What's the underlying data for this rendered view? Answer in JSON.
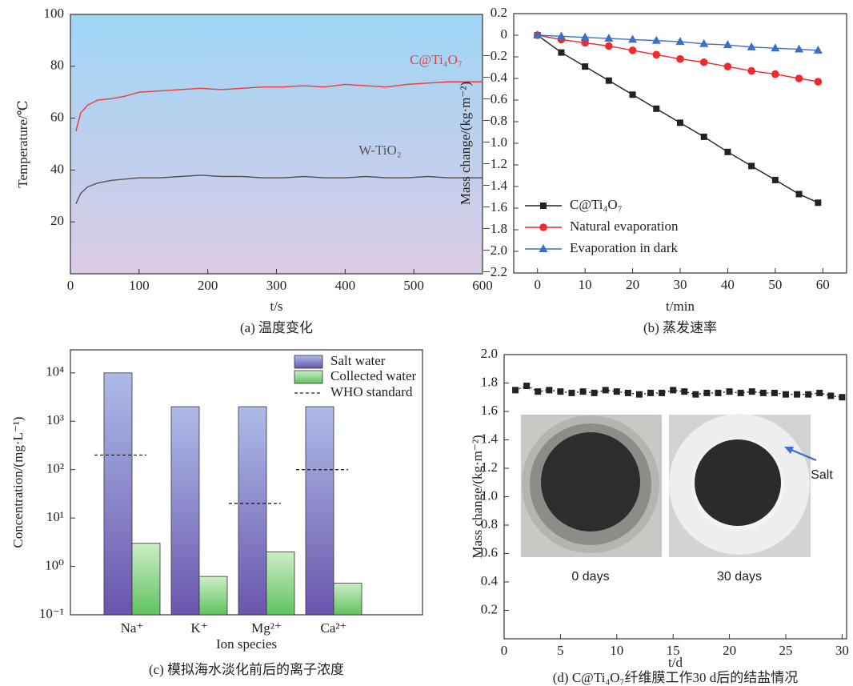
{
  "chart_data": [
    {
      "type": "line",
      "xlabel": "t/s",
      "ylabel": "Temperature/℃",
      "caption": "(a) 温度变化",
      "xlim": [
        0,
        600
      ],
      "xticks": [
        0,
        100,
        200,
        300,
        400,
        500,
        600
      ],
      "ylim": [
        0,
        100
      ],
      "yticks": [
        20,
        40,
        60,
        80,
        100
      ],
      "x": [
        8,
        15,
        25,
        40,
        60,
        80,
        100,
        130,
        160,
        190,
        220,
        250,
        280,
        310,
        340,
        370,
        400,
        430,
        460,
        490,
        520,
        550,
        580,
        600
      ],
      "series": [
        {
          "name": "C@Ti₄O₇",
          "color": "#f03a3a",
          "values": [
            55,
            62,
            65,
            67,
            67.5,
            68.5,
            70,
            70.5,
            71,
            71.5,
            71,
            71.5,
            72,
            72,
            72.5,
            72,
            73,
            72.5,
            72,
            73,
            73.5,
            74,
            74,
            74
          ]
        },
        {
          "name": "W-TiO₂",
          "color": "#555555",
          "values": [
            27,
            31,
            33.5,
            35,
            36,
            36.5,
            37,
            37,
            37.5,
            38,
            37.5,
            37.5,
            37,
            37,
            37.5,
            37,
            37,
            37.5,
            37,
            37,
            37.5,
            37,
            37,
            37
          ]
        }
      ]
    },
    {
      "type": "line",
      "xlabel": "t/min",
      "ylabel": "Mass change/(kg·m⁻²)",
      "caption": "(b) 蒸发速率",
      "legend": "lower left",
      "xlim": [
        -5,
        65
      ],
      "xticks": [
        0,
        10,
        20,
        30,
        40,
        50,
        60
      ],
      "ylim": [
        -2.2,
        0.2
      ],
      "yticks": [
        0.2,
        0,
        {
          "value": -0.2,
          "label": "−0.2"
        },
        {
          "value": -0.4,
          "label": "−0.4"
        },
        {
          "value": -0.6,
          "label": "−0.6"
        },
        {
          "value": -0.8,
          "label": "−0.8"
        },
        {
          "value": -1.0,
          "label": "−1.0"
        },
        {
          "value": -1.2,
          "label": "−1.2"
        },
        {
          "value": -1.4,
          "label": "−1.4"
        },
        {
          "value": -1.6,
          "label": "−1.6"
        },
        {
          "value": -1.8,
          "label": "−1.8"
        },
        {
          "value": -2.0,
          "label": "−2.0"
        },
        {
          "value": -2.2,
          "label": "−2.2"
        }
      ],
      "x": [
        0,
        5,
        10,
        15,
        20,
        25,
        30,
        35,
        40,
        45,
        50,
        55,
        59
      ],
      "series": [
        {
          "name": "C@Ti₄O₇",
          "color": "#222222",
          "marker": "square",
          "values": [
            0,
            -0.16,
            -0.29,
            -0.42,
            -0.55,
            -0.68,
            -0.81,
            -0.94,
            -1.08,
            -1.21,
            -1.34,
            -1.47,
            -1.55
          ]
        },
        {
          "name": "Natural evaporation",
          "color": "#ee2b2b",
          "marker": "circle",
          "values": [
            0,
            -0.04,
            -0.07,
            -0.1,
            -0.14,
            -0.18,
            -0.22,
            -0.25,
            -0.29,
            -0.33,
            -0.36,
            -0.4,
            -0.43
          ]
        },
        {
          "name": "Evaporation in dark",
          "color": "#3a6fc4",
          "marker": "triangle",
          "values": [
            0,
            -0.01,
            -0.02,
            -0.03,
            -0.04,
            -0.05,
            -0.06,
            -0.08,
            -0.09,
            -0.11,
            -0.12,
            -0.13,
            -0.14
          ]
        }
      ]
    },
    {
      "type": "bar",
      "xlabel": "Ion species",
      "ylabel": "Concentration/(mg·L⁻¹)",
      "caption": "(c) 模拟海水淡化前后的离子浓度",
      "legend": "upper right",
      "log_scale": true,
      "ylim": [
        0.1,
        30000
      ],
      "yticks": [
        {
          "value": 0.1,
          "label": "10⁻¹"
        },
        {
          "value": 1,
          "label": "10⁰"
        },
        {
          "value": 10,
          "label": "10¹"
        },
        {
          "value": 100,
          "label": "10²"
        },
        {
          "value": 1000,
          "label": "10³"
        },
        {
          "value": 10000,
          "label": "10⁴"
        }
      ],
      "categories": [
        "Na⁺",
        "K⁺",
        "Mg²⁺",
        "Ca²⁺"
      ],
      "series": [
        {
          "name": "Salt water",
          "color": [
            "#aebbe9",
            "#6a55ad"
          ],
          "values": [
            10000,
            2000,
            2000,
            2000
          ]
        },
        {
          "name": "Collected water",
          "color": [
            "#cdeec6",
            "#5fc25f"
          ],
          "values": [
            3,
            0.62,
            2,
            0.45
          ]
        },
        {
          "name": "WHO standard",
          "color": "#222222",
          "mark": "dash",
          "values": [
            200,
            null,
            20,
            100
          ]
        }
      ]
    },
    {
      "type": "line",
      "xlabel": "t/d",
      "ylabel": "Mass change/(kg·m⁻²)",
      "caption": "(d) C@Ti₄O₇纤维膜工作30 d后的结盐情况",
      "xlim": [
        0,
        30.4
      ],
      "xticks": [
        0,
        5,
        10,
        15,
        20,
        25,
        30
      ],
      "ylim": [
        0,
        2.0
      ],
      "yticks": [
        {
          "value": 2.0,
          "label": "2.0"
        },
        1.8,
        1.6,
        1.4,
        1.2,
        {
          "value": 1.0,
          "label": "1.0"
        },
        0.8,
        0.6,
        0.4,
        0.2
      ],
      "x": [
        1,
        2,
        3,
        4,
        5,
        6,
        7,
        8,
        9,
        10,
        11,
        12,
        13,
        14,
        15,
        16,
        17,
        18,
        19,
        20,
        21,
        22,
        23,
        24,
        25,
        26,
        27,
        28,
        29,
        30
      ],
      "series": [
        {
          "color": "#222222",
          "marker": "square",
          "line": "dotted",
          "values": [
            1.75,
            1.78,
            1.74,
            1.75,
            1.74,
            1.73,
            1.74,
            1.73,
            1.75,
            1.74,
            1.73,
            1.72,
            1.73,
            1.73,
            1.75,
            1.74,
            1.72,
            1.73,
            1.73,
            1.74,
            1.73,
            1.74,
            1.73,
            1.73,
            1.72,
            1.72,
            1.72,
            1.73,
            1.71,
            1.7
          ]
        }
      ],
      "annotations": [
        "0 days",
        "30 days",
        "Salt"
      ]
    }
  ]
}
